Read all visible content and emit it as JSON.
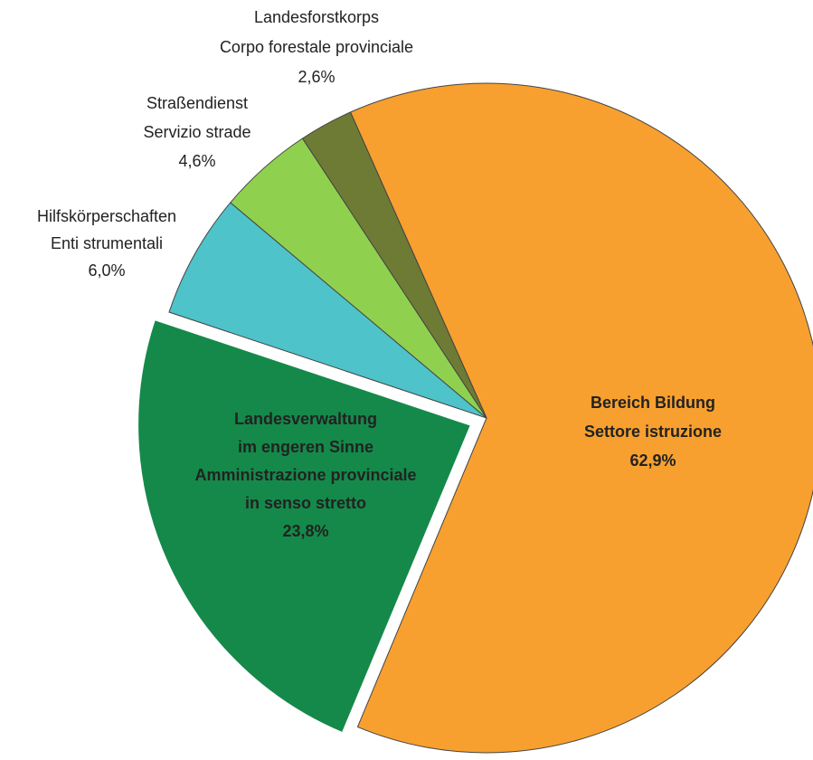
{
  "chart_data": {
    "type": "pie",
    "categories": [
      [
        "Bereich Bildung",
        "Settore istruzione"
      ],
      [
        "Landesverwaltung",
        "im engeren Sinne",
        "Amministrazione provinciale",
        "in senso stretto"
      ],
      [
        "Hilfskörperschaften",
        "Enti strumentali"
      ],
      [
        "Straßendienst",
        "Servizio strade"
      ],
      [
        "Landesforstkorps",
        "Corpo forestale provinciale"
      ]
    ],
    "values": [
      62.9,
      23.8,
      6.0,
      4.6,
      2.6
    ],
    "value_labels": [
      "62,9%",
      "23,8%",
      "6,0%",
      "4,6%",
      "2,6%"
    ],
    "colors": [
      "#f7a030",
      "#15894a",
      "#4ec3c9",
      "#8fd14f",
      "#6e7b34"
    ],
    "exploded": [
      false,
      true,
      false,
      false,
      false
    ]
  }
}
